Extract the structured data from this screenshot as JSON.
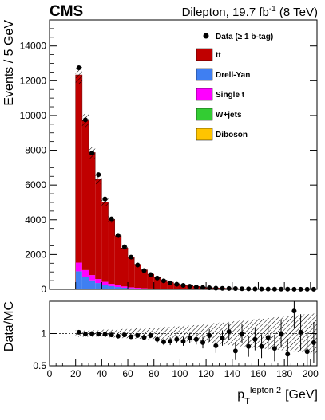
{
  "header": {
    "experiment": "CMS",
    "dataset_prefix": "Dilepton, 19.7 fb",
    "dataset_exp": "-1",
    "dataset_suffix": " (8 TeV)"
  },
  "chart_data": [
    {
      "type": "bar",
      "stacked": true,
      "ylabel": "Events / 5 GeV",
      "xlim": [
        0,
        205
      ],
      "ylim": [
        0,
        15500
      ],
      "y_ticks": [
        0,
        2000,
        4000,
        6000,
        8000,
        10000,
        12000,
        14000
      ],
      "bin_width": 5,
      "bin_low_edges": [
        20,
        25,
        30,
        35,
        40,
        45,
        50,
        55,
        60,
        65,
        70,
        75,
        80,
        85,
        90,
        95,
        100,
        105,
        110,
        115,
        120,
        125,
        130,
        135,
        140,
        145,
        150,
        155,
        160,
        165,
        170,
        175,
        180,
        185,
        190,
        195,
        200
      ],
      "legend": {
        "position": "top-right",
        "data_label": "Data (≥ 1 b-tag)",
        "entries": [
          {
            "name": "tt",
            "color": "#c00000"
          },
          {
            "name": "Drell-Yan",
            "color": "#3f7ff2"
          },
          {
            "name": "Single t",
            "color": "#ff00ff"
          },
          {
            "name": "W+jets",
            "color": "#33cc33"
          },
          {
            "name": "Diboson",
            "color": "#ffc400"
          }
        ]
      },
      "series": [
        {
          "name": "Diboson",
          "color": "#ffc400",
          "values": [
            20,
            15,
            10,
            8,
            6,
            4,
            3,
            2,
            2,
            1,
            1,
            1,
            1,
            0,
            0,
            0,
            0,
            0,
            0,
            0,
            0,
            0,
            0,
            0,
            0,
            0,
            0,
            0,
            0,
            0,
            0,
            0,
            0,
            0,
            0,
            0,
            0
          ]
        },
        {
          "name": "W+jets",
          "color": "#33cc33",
          "values": [
            15,
            10,
            8,
            6,
            4,
            3,
            2,
            2,
            1,
            1,
            1,
            0,
            0,
            0,
            0,
            0,
            0,
            0,
            0,
            0,
            0,
            0,
            0,
            0,
            0,
            0,
            0,
            0,
            0,
            0,
            0,
            0,
            0,
            0,
            0,
            0,
            0
          ]
        },
        {
          "name": "Drell-Yan",
          "color": "#3f7ff2",
          "values": [
            1000,
            700,
            500,
            350,
            250,
            180,
            130,
            90,
            60,
            45,
            32,
            24,
            17,
            12,
            9,
            7,
            5,
            4,
            3,
            2,
            2,
            1,
            1,
            1,
            1,
            0,
            0,
            0,
            0,
            0,
            0,
            0,
            0,
            0,
            0,
            0,
            0
          ]
        },
        {
          "name": "Single t",
          "color": "#ff00ff",
          "values": [
            500,
            380,
            300,
            230,
            170,
            130,
            100,
            75,
            55,
            42,
            32,
            24,
            18,
            14,
            10,
            8,
            6,
            5,
            4,
            3,
            2,
            2,
            1,
            1,
            1,
            1,
            1,
            0,
            0,
            0,
            0,
            0,
            0,
            0,
            0,
            0,
            0
          ]
        },
        {
          "name": "tt",
          "color": "#c00000",
          "values": [
            10800,
            8600,
            7050,
            5730,
            4600,
            3700,
            2850,
            2200,
            1700,
            1350,
            1050,
            820,
            640,
            500,
            390,
            310,
            250,
            200,
            160,
            120,
            95,
            77,
            62,
            50,
            40,
            33,
            27,
            22,
            18,
            15,
            12,
            10,
            8,
            7,
            6,
            5,
            4
          ]
        }
      ],
      "data": {
        "name": "Data (≥ 1 b-tag)",
        "values": [
          12750,
          9750,
          7850,
          6600,
          5200,
          4050,
          3100,
          2450,
          1850,
          1400,
          1080,
          850,
          650,
          490,
          370,
          290,
          230,
          180,
          140,
          110,
          90,
          70,
          60,
          52,
          45,
          37,
          30,
          24,
          20,
          17,
          14,
          11,
          9,
          8,
          7,
          6,
          5
        ]
      }
    },
    {
      "type": "scatter",
      "xlabel_main": "p",
      "xlabel_sub": "T",
      "xlabel_sup": "lepton 2",
      "xlabel_unit": "[GeV]",
      "ylabel": "Data/MC",
      "xlim": [
        0,
        205
      ],
      "ylim": [
        0.5,
        1.5
      ],
      "y_ticks": [
        0.5,
        1
      ],
      "x_ticks": [
        0,
        20,
        40,
        60,
        80,
        100,
        120,
        140,
        160,
        180,
        200
      ],
      "reference_line": 1,
      "x": [
        22.5,
        27.5,
        32.5,
        37.5,
        42.5,
        47.5,
        52.5,
        57.5,
        62.5,
        67.5,
        72.5,
        77.5,
        82.5,
        87.5,
        92.5,
        97.5,
        102.5,
        107.5,
        112.5,
        117.5,
        122.5,
        127.5,
        132.5,
        137.5,
        142.5,
        147.5,
        152.5,
        157.5,
        162.5,
        167.5,
        172.5,
        177.5,
        182.5,
        187.5,
        192.5,
        197.5,
        202.5
      ],
      "ratio": [
        1.02,
        0.99,
        1.0,
        0.99,
        0.99,
        0.98,
        0.96,
        0.98,
        0.95,
        0.97,
        0.94,
        0.97,
        0.91,
        0.87,
        0.88,
        0.91,
        0.88,
        0.93,
        0.91,
        0.86,
        0.97,
        0.81,
        0.93,
        1.03,
        0.73,
        1.0,
        0.8,
        0.91,
        0.8,
        0.94,
        0.77,
        1.0,
        0.68,
        1.35,
        1.02,
        0.72,
        0.86
      ],
      "errors": [
        0.02,
        0.02,
        0.02,
        0.02,
        0.02,
        0.02,
        0.03,
        0.03,
        0.03,
        0.03,
        0.04,
        0.04,
        0.05,
        0.05,
        0.06,
        0.06,
        0.07,
        0.08,
        0.08,
        0.09,
        0.1,
        0.11,
        0.12,
        0.13,
        0.14,
        0.15,
        0.16,
        0.17,
        0.18,
        0.19,
        0.2,
        0.22,
        0.24,
        0.26,
        0.28,
        0.3,
        0.32
      ],
      "uncertainty_band_halfwidth": [
        0.05,
        0.05,
        0.05,
        0.05,
        0.06,
        0.06,
        0.06,
        0.07,
        0.07,
        0.08,
        0.08,
        0.09,
        0.09,
        0.1,
        0.1,
        0.11,
        0.12,
        0.12,
        0.13,
        0.14,
        0.15,
        0.16,
        0.17,
        0.18,
        0.19,
        0.2,
        0.21,
        0.22,
        0.23,
        0.24,
        0.25,
        0.26,
        0.27,
        0.28,
        0.29,
        0.3,
        0.31
      ]
    }
  ]
}
